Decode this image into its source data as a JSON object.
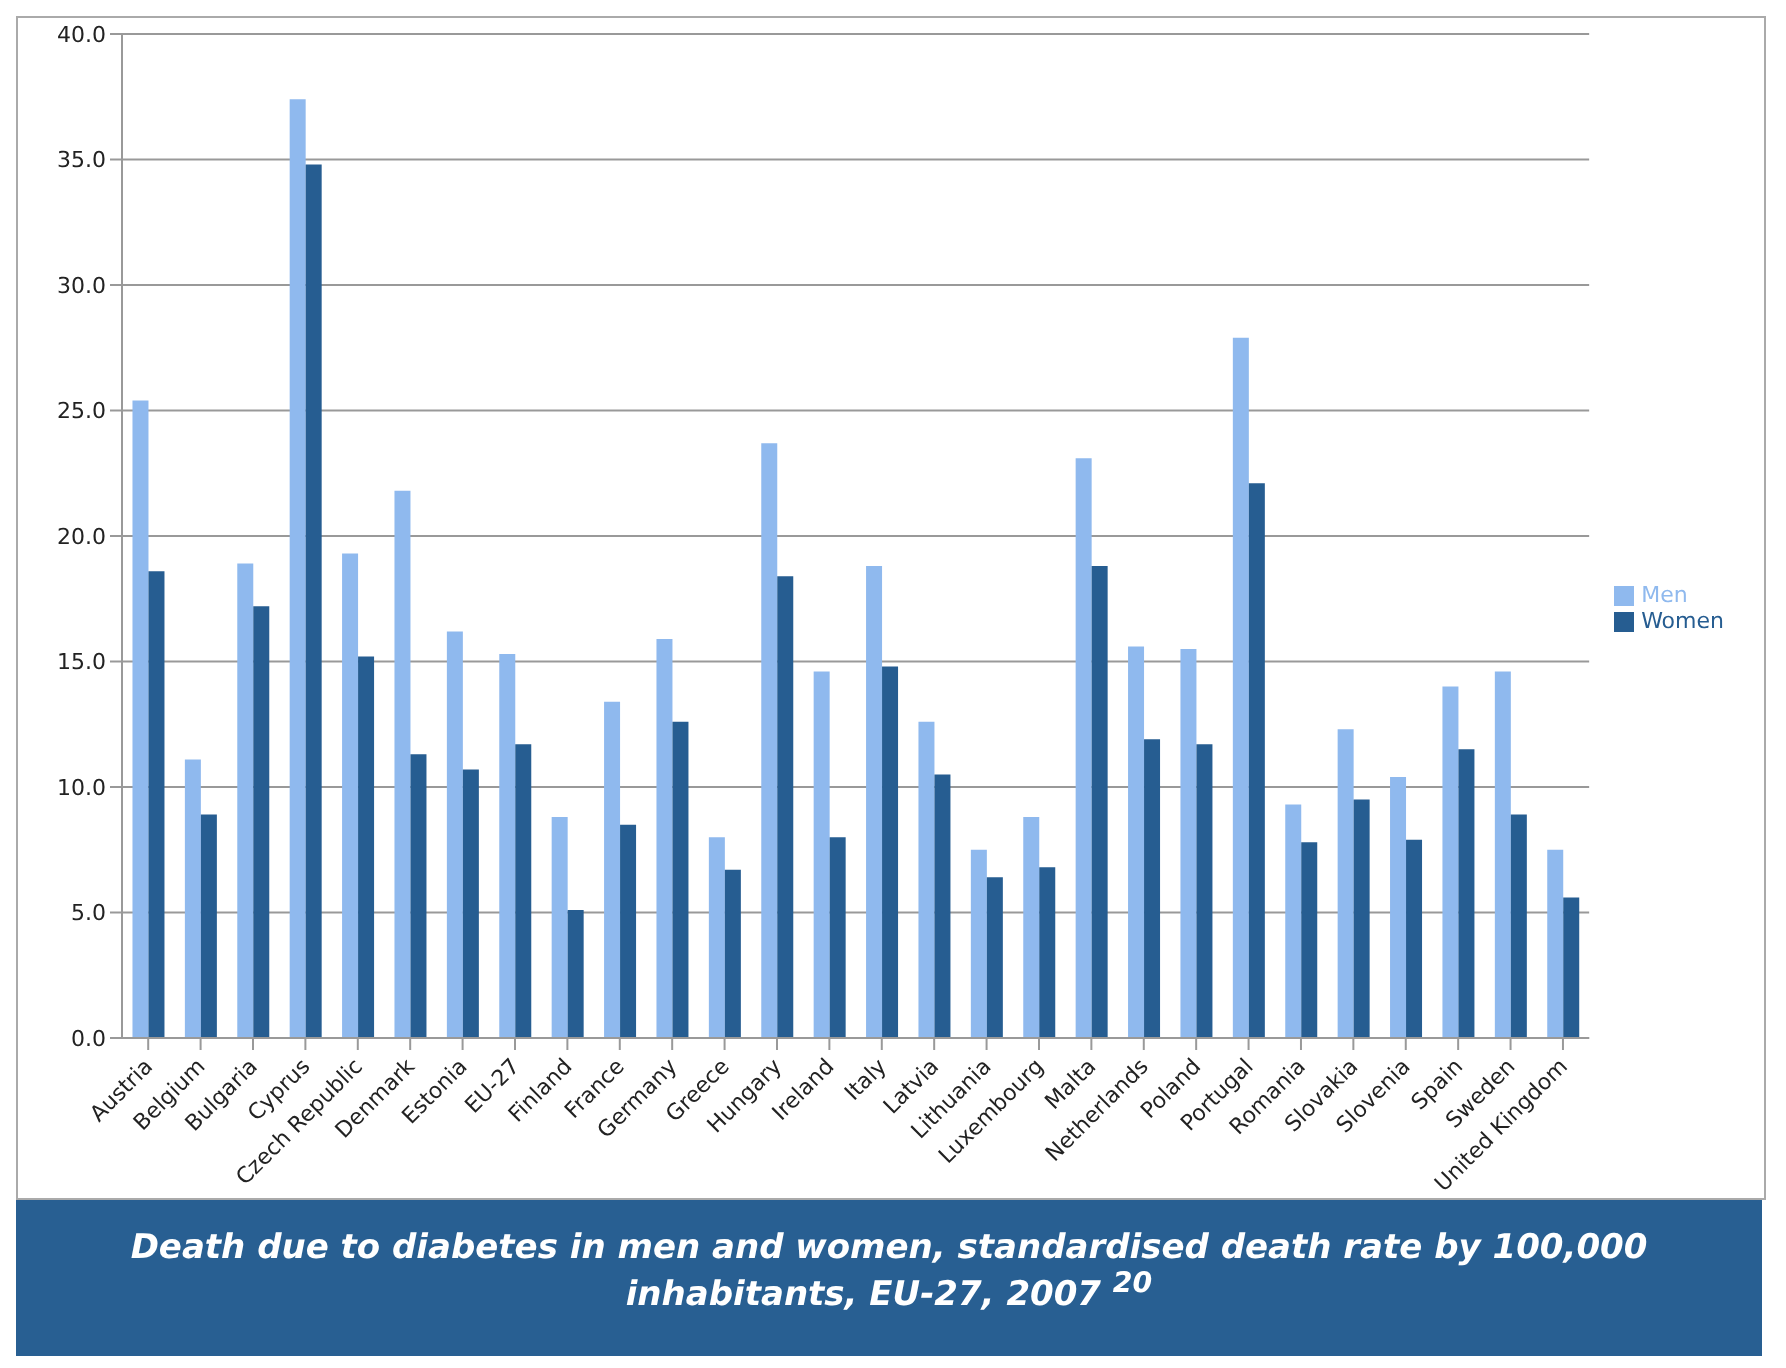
{
  "chart_data": {
    "type": "bar",
    "title": "Death due to diabetes in men and women, standardised death rate by 100,000 inhabitants, EU-27, 2007 $^{20}$",
    "categories": [
      "Austria",
      "Belgium",
      "Bulgaria",
      "Cyprus",
      "Czech Republic",
      "Denmark",
      "Estonia",
      "EU-27",
      "Finland",
      "France",
      "Germany",
      "Greece",
      "Hungary",
      "Ireland",
      "Italy",
      "Latvia",
      "Lithuania",
      "Luxembourg",
      "Malta",
      "Netherlands",
      "Poland",
      "Portugal",
      "Romania",
      "Slovakia",
      "Slovenia",
      "Spain",
      "Sweden",
      "United Kingdom"
    ],
    "series": [
      {
        "name": "Men",
        "color": "#8fb9ee",
        "values": [
          25.4,
          11.1,
          18.9,
          37.4,
          19.3,
          21.8,
          16.2,
          15.3,
          8.8,
          13.4,
          15.9,
          8.0,
          23.7,
          14.6,
          18.8,
          12.6,
          7.5,
          8.8,
          23.1,
          15.6,
          15.5,
          27.9,
          9.3,
          12.3,
          10.4,
          14.0,
          14.6,
          7.5
        ]
      },
      {
        "name": "Women",
        "color": "#265d91",
        "values": [
          18.6,
          8.9,
          17.2,
          34.8,
          15.2,
          11.3,
          10.7,
          11.7,
          5.1,
          8.5,
          12.6,
          6.7,
          18.4,
          8.0,
          14.8,
          10.5,
          6.4,
          6.8,
          18.8,
          11.9,
          11.7,
          22.1,
          7.8,
          9.5,
          7.9,
          11.5,
          8.9,
          5.6
        ]
      }
    ],
    "ylim": [
      0,
      40
    ],
    "yticks": [
      {
        "value": 0,
        "label": "0.0"
      },
      {
        "value": 5,
        "label": "5.0"
      },
      {
        "value": 10,
        "label": "10.0"
      },
      {
        "value": 15,
        "label": "15.0"
      },
      {
        "value": 20,
        "label": "20.0"
      },
      {
        "value": 25,
        "label": "25.0"
      },
      {
        "value": 30,
        "label": "30.0"
      },
      {
        "value": 35,
        "label": "35.0"
      },
      {
        "value": 40,
        "label": "40.0"
      }
    ],
    "grid": "y",
    "legend": "right"
  }
}
